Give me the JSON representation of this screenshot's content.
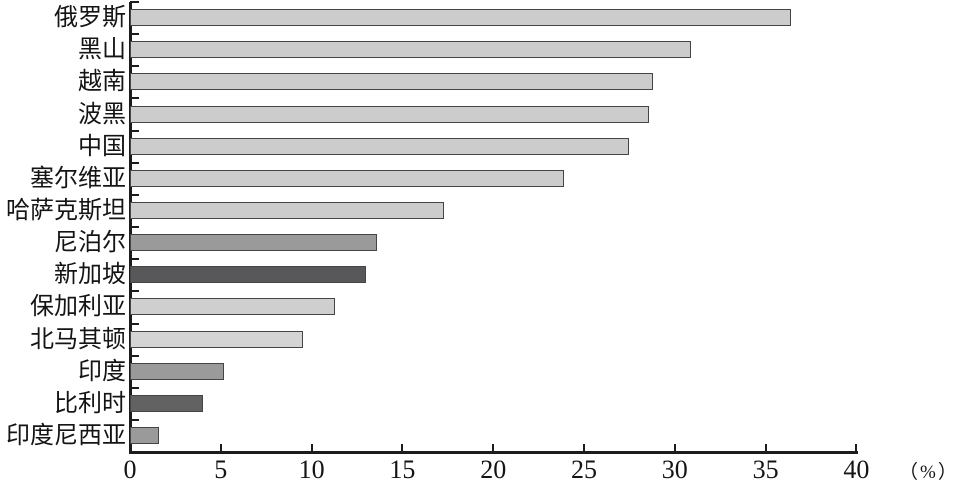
{
  "chart_data": {
    "type": "bar",
    "orientation": "horizontal",
    "title": "",
    "categories": [
      "俄罗斯",
      "黑山",
      "越南",
      "波黑",
      "中国",
      "塞尔维亚",
      "哈萨克斯坦",
      "尼泊尔",
      "新加坡",
      "保加利亚",
      "北马其顿",
      "印度",
      "比利时",
      "印度尼西亚"
    ],
    "values": [
      36.4,
      30.9,
      28.8,
      28.6,
      27.5,
      23.9,
      17.3,
      13.6,
      13.0,
      11.3,
      9.5,
      5.2,
      4.0,
      1.6
    ],
    "bar_colors": [
      "#cccccc",
      "#cccccc",
      "#cccccc",
      "#cccccc",
      "#cccccc",
      "#cccccc",
      "#cccccc",
      "#9a9a9a",
      "#58585a",
      "#cfcfcf",
      "#d4d4d4",
      "#9a9a9a",
      "#626262",
      "#9a9a9a"
    ],
    "xlabel": "（%）",
    "x_ticks": [
      0,
      5,
      10,
      15,
      20,
      25,
      30,
      35,
      40
    ],
    "xlim": [
      0,
      40
    ],
    "grid": false,
    "legend": null
  },
  "colors": {
    "axis": "#1c1c1c",
    "bar_border": "#454545",
    "text": "#141414",
    "background": "#ffffff"
  }
}
